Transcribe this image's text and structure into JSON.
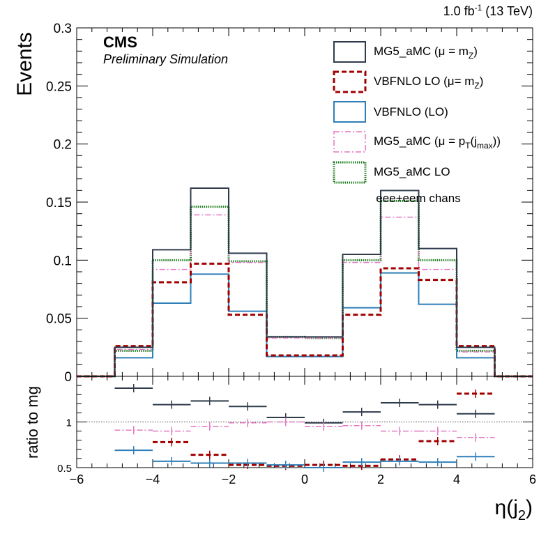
{
  "chart_data": [
    {
      "type": "line",
      "panel": "main",
      "ylabel": "Events",
      "xlabel": "",
      "ylim": [
        0,
        0.3
      ],
      "xlim": [
        -6,
        6
      ],
      "yticks": [
        "0",
        "0.05",
        "0.1",
        "0.15",
        "0.2",
        "0.25",
        "0.3"
      ],
      "ytick_values": [
        0,
        0.05,
        0.1,
        0.15,
        0.2,
        0.25,
        0.3
      ],
      "lumi_label": "1.0 fb",
      "lumi_exp": "-1",
      "lumi_energy": " (13 TeV)",
      "cms_label": "CMS",
      "cms_sub": "Preliminary Simulation",
      "channel_label": "eee+eem chans",
      "bin_edges": [
        -5,
        -4,
        -3,
        -2,
        -1,
        0,
        1,
        2,
        3,
        4,
        5
      ],
      "series": [
        {
          "name": "MG5_aMC (μ = m",
          "sub": "Z",
          "tail": ")",
          "color": "#2f3b4c",
          "style": "solid",
          "values": [
            0.025,
            0.109,
            0.162,
            0.106,
            0.034,
            0.034,
            0.105,
            0.16,
            0.11,
            0.025
          ]
        },
        {
          "name": "VBFNLO LO (μ= m",
          "sub": "Z",
          "tail": ")",
          "color": "#a00000",
          "style": "dashed",
          "values": [
            0.026,
            0.081,
            0.097,
            0.053,
            0.018,
            0.018,
            0.053,
            0.093,
            0.083,
            0.026
          ]
        },
        {
          "name": "VBFNLO (LO)",
          "sub": "",
          "tail": "",
          "color": "#2e7fb8",
          "style": "solid",
          "values": [
            0.016,
            0.063,
            0.088,
            0.056,
            0.017,
            0.017,
            0.059,
            0.089,
            0.062,
            0.016
          ]
        },
        {
          "name": "MG5_aMC (μ = p",
          "sub": "T",
          "tail": "(j",
          "sub2": "max",
          "tail2": "))",
          "color": "#e377c2",
          "style": "dashdot",
          "values": [
            0.023,
            0.092,
            0.139,
            0.098,
            0.033,
            0.033,
            0.098,
            0.137,
            0.092,
            0.021
          ]
        },
        {
          "name": "MG5_aMC LO",
          "sub": "",
          "tail": "",
          "color": "#1a7a1a",
          "style": "dotted",
          "values": [
            0.022,
            0.1,
            0.146,
            0.099,
            0.034,
            0.033,
            0.1,
            0.151,
            0.1,
            0.022
          ]
        }
      ]
    },
    {
      "type": "scatter",
      "panel": "ratio",
      "ylabel": "ratio to mg",
      "xlabel": "η(j",
      "xlabel_sub": "2",
      "xlabel_tail": ")",
      "ylim": [
        0.5,
        1.5
      ],
      "xlim": [
        -6,
        6
      ],
      "yticks": [
        "0.5",
        "1"
      ],
      "ytick_values": [
        0.5,
        1.0
      ],
      "xticks": [
        "−6",
        "−4",
        "−2",
        "0",
        "2",
        "4",
        "6"
      ],
      "xtick_values": [
        -6,
        -4,
        -2,
        0,
        2,
        4,
        6
      ],
      "bin_centers": [
        -4.5,
        -3.5,
        -2.5,
        -1.5,
        -0.5,
        0.5,
        1.5,
        2.5,
        3.5,
        4.5
      ],
      "series": [
        {
          "name": "MG5_aMC LO",
          "color": "#2f3b4c",
          "style": "solid",
          "values": [
            1.37,
            1.19,
            1.23,
            1.17,
            1.05,
            0.99,
            1.11,
            1.21,
            1.19,
            1.09
          ]
        },
        {
          "name": "MG5_aMC (μ = p",
          "color": "#e377c2",
          "style": "dashdot",
          "values": [
            0.91,
            0.9,
            0.95,
            0.99,
            1.0,
            0.95,
            0.96,
            0.9,
            0.9,
            0.83
          ]
        },
        {
          "name": "VBFNLO LO (μ= m",
          "color": "#a00000",
          "style": "dashed",
          "values": [
            1.54,
            0.78,
            0.64,
            0.53,
            0.52,
            0.53,
            0.52,
            0.59,
            0.79,
            1.31
          ]
        },
        {
          "name": "VBFNLO (LO)",
          "color": "#2e7fb8",
          "style": "solid",
          "values": [
            0.69,
            0.57,
            0.55,
            0.55,
            0.53,
            0.5,
            0.56,
            0.57,
            0.56,
            0.62
          ]
        }
      ]
    }
  ]
}
